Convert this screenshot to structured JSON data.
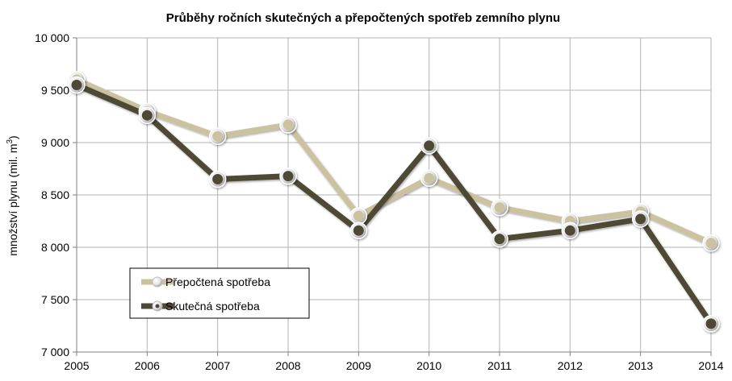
{
  "colors": {
    "prepoctena": "#CBC3A0",
    "skutecna": "#4E4836",
    "grid": "#B3B3B3",
    "axis": "#7F7F7F"
  },
  "chart_data": {
    "type": "line",
    "title": "Průběhy ročních skutečných a přepočtených spotřeb zemního plynu",
    "xlabel": "",
    "ylabel_main": "množství plynu (mil. m",
    "ylabel_sup": "3",
    "ylabel_close": ")",
    "ylim": [
      7000,
      10000
    ],
    "ytick_values": [
      7000,
      7500,
      8000,
      8500,
      9000,
      9500,
      10000
    ],
    "ytick_labels": [
      "7 000",
      "7 500",
      "8 000",
      "8 500",
      "9 000",
      "9 500",
      "10 000"
    ],
    "categories": [
      "2005",
      "2006",
      "2007",
      "2008",
      "2009",
      "2010",
      "2011",
      "2012",
      "2013",
      "2014"
    ],
    "series": [
      {
        "name": "Přepočtená spotřeba",
        "color_key": "prepoctena",
        "values": [
          9600,
          9300,
          9060,
          9170,
          8300,
          8660,
          8380,
          8250,
          8340,
          8040
        ]
      },
      {
        "name": "Skutečná spotřeba",
        "color_key": "skutecna",
        "values": [
          9550,
          9260,
          8650,
          8680,
          8160,
          8970,
          8080,
          8160,
          8270,
          7270
        ]
      }
    ],
    "legend_position": "bottom-left"
  }
}
